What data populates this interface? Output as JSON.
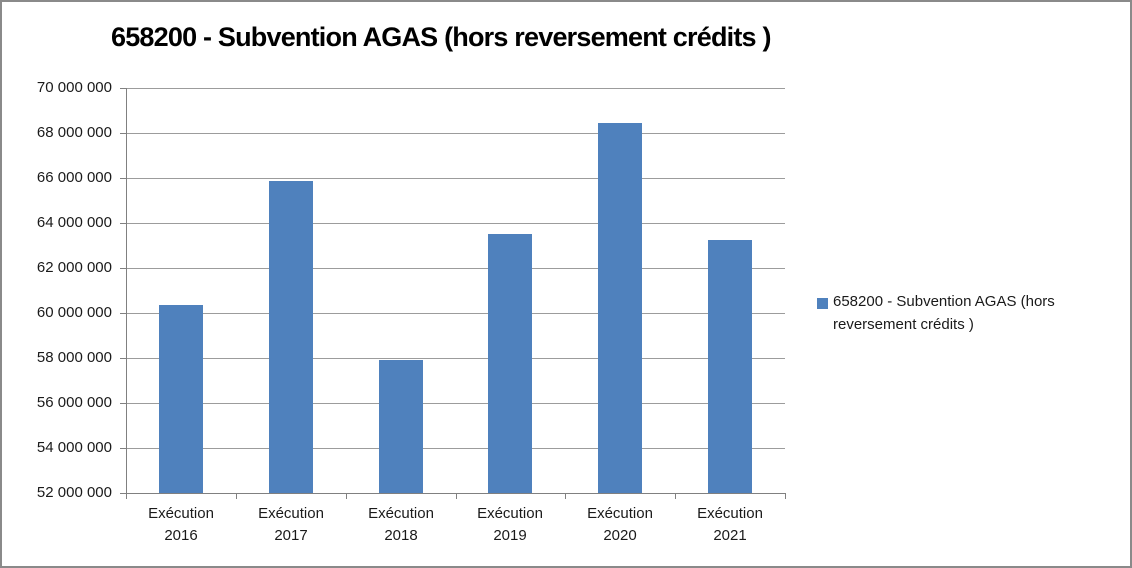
{
  "window": {
    "border_color": "#8a8a8a",
    "background_color": "#ffffff"
  },
  "chart_data": {
    "type": "bar",
    "title": "658200 - Subvention AGAS (hors reversement crédits )",
    "categories": [
      {
        "line1": "Exécution",
        "line2": "2016"
      },
      {
        "line1": "Exécution",
        "line2": "2017"
      },
      {
        "line1": "Exécution",
        "line2": "2018"
      },
      {
        "line1": "Exécution",
        "line2": "2019"
      },
      {
        "line1": "Exécution",
        "line2": "2020"
      },
      {
        "line1": "Exécution",
        "line2": "2021"
      }
    ],
    "values": [
      60350000,
      65850000,
      57900000,
      63500000,
      68450000,
      63250000
    ],
    "series_name": "658200 - Subvention AGAS (hors reversement crédits )",
    "ylim": [
      52000000,
      70000000
    ],
    "ytick_step": 2000000,
    "ytick_labels": [
      "70 000 000",
      "68 000 000",
      "66 000 000",
      "64 000 000",
      "62 000 000",
      "60 000 000",
      "58 000 000",
      "56 000 000",
      "54 000 000",
      "52 000 000"
    ],
    "grid": true,
    "legend_position": "right",
    "legend": {
      "lines": [
        "658200 - Subvention AGAS (hors",
        "reversement crédits )"
      ],
      "swatch_color": "#4F81BD"
    },
    "bar_color": "#4F81BD",
    "grid_color": "#9c9c9c",
    "axis_color": "#808080",
    "xlabel": "",
    "ylabel": ""
  }
}
